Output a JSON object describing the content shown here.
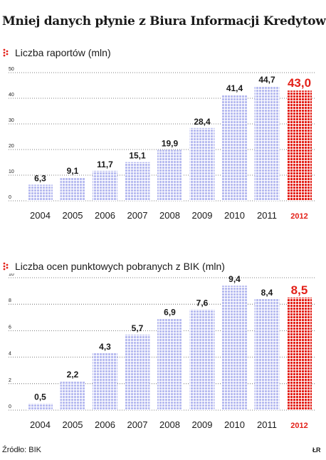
{
  "title": "Mniej danych płynie z Biura Informacji Kredytowej",
  "source": "Źródło: BIK",
  "credit": "ŁR",
  "colors": {
    "bar": "#b8bcf0",
    "bar_dot": "#ffffff",
    "highlight": "#e32119",
    "text": "#1a1a1a",
    "grid": "#555555"
  },
  "chart_data": [
    {
      "type": "bar",
      "title": "Liczba raportów (mln)",
      "categories": [
        "2004",
        "2005",
        "2006",
        "2007",
        "2008",
        "2009",
        "2010",
        "2011",
        "2012"
      ],
      "values": [
        6.3,
        9.1,
        11.7,
        15.1,
        19.9,
        28.4,
        41.4,
        44.7,
        43.0
      ],
      "value_labels": [
        "6,3",
        "9,1",
        "11,7",
        "15,1",
        "19,9",
        "28,4",
        "41,4",
        "44,7",
        "43,0"
      ],
      "highlight_index": 8,
      "yticks": [
        0,
        10,
        20,
        30,
        40,
        50
      ],
      "ylim": [
        0,
        50
      ],
      "grid": true
    },
    {
      "type": "bar",
      "title": "Liczba ocen punktowych pobranych z BIK (mln)",
      "categories": [
        "2004",
        "2005",
        "2006",
        "2007",
        "2008",
        "2009",
        "2010",
        "2011",
        "2012"
      ],
      "values": [
        0.5,
        2.2,
        4.3,
        5.7,
        6.9,
        7.6,
        9.4,
        8.4,
        8.5
      ],
      "value_labels": [
        "0,5",
        "2,2",
        "4,3",
        "5,7",
        "6,9",
        "7,6",
        "9,4",
        "8,4",
        "8,5"
      ],
      "highlight_index": 8,
      "yticks": [
        0,
        2,
        4,
        6,
        8,
        10
      ],
      "ylim": [
        0,
        10
      ],
      "grid": true
    }
  ]
}
